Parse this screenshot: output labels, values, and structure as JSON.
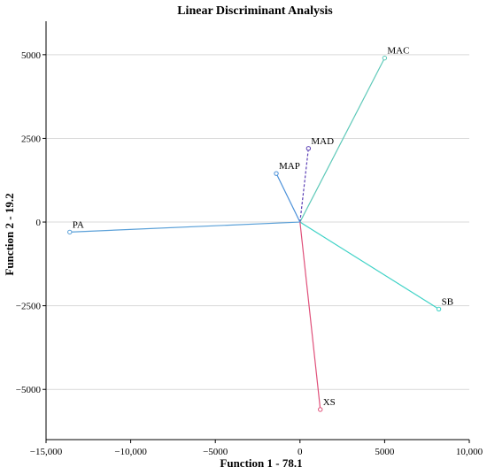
{
  "chart_data": {
    "type": "line",
    "title": "Linear Discriminant Analysis",
    "xlabel": "Function 1 - 78.1",
    "ylabel": "Function 2 - 19.2",
    "xlim": [
      -15000,
      10000
    ],
    "ylim": [
      -6500,
      6000
    ],
    "xticks": [
      -15000,
      -10000,
      -5000,
      0,
      5000,
      10000
    ],
    "xtick_labels": [
      "−15,000",
      "−10,000",
      "−5000",
      "0",
      "5000",
      "10,000"
    ],
    "yticks": [
      -5000,
      -2500,
      0,
      2500,
      5000
    ],
    "ytick_labels": [
      "−5000",
      "−2500",
      "0",
      "2500",
      "5000"
    ],
    "grid": {
      "horizontal": true,
      "vertical": false
    },
    "origin": [
      0,
      0
    ],
    "series": [
      {
        "name": "MAC",
        "x": 5000,
        "y": 4900,
        "color": "#5fc9b9",
        "dashed": false
      },
      {
        "name": "MAD",
        "x": 500,
        "y": 2200,
        "color": "#5b3fb5",
        "dashed": true
      },
      {
        "name": "MAP",
        "x": -1400,
        "y": 1450,
        "color": "#4a90d9",
        "dashed": false
      },
      {
        "name": "PA",
        "x": -13600,
        "y": -300,
        "color": "#5aa0d8",
        "dashed": false
      },
      {
        "name": "SB",
        "x": 8200,
        "y": -2600,
        "color": "#3ed2c6",
        "dashed": false
      },
      {
        "name": "XS",
        "x": 1200,
        "y": -5600,
        "color": "#e0507a",
        "dashed": false
      }
    ]
  }
}
